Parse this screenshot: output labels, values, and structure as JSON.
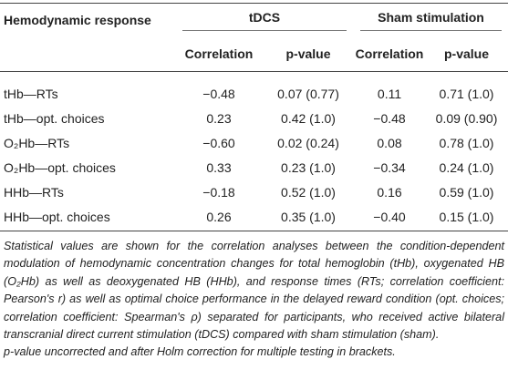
{
  "table": {
    "header": {
      "label": "Hemodynamic response",
      "groups": [
        "tDCS",
        "Sham stimulation"
      ],
      "columns": [
        "Correlation",
        "p-value",
        "Correlation",
        "p-value"
      ]
    },
    "rows": [
      [
        "tHb—RTs",
        "−0.48",
        "0.07 (0.77)",
        "0.11",
        "0.71 (1.0)"
      ],
      [
        "tHb—opt. choices",
        "0.23",
        "0.42 (1.0)",
        "−0.48",
        "0.09 (0.90)"
      ],
      [
        "O₂Hb—RTs",
        "−0.60",
        "0.02 (0.24)",
        "0.08",
        "0.78 (1.0)"
      ],
      [
        "O₂Hb—opt. choices",
        "0.33",
        "0.23 (1.0)",
        "−0.34",
        "0.24 (1.0)"
      ],
      [
        "HHb—RTs",
        "−0.18",
        "0.52 (1.0)",
        "0.16",
        "0.59 (1.0)"
      ],
      [
        "HHb—opt. choices",
        "0.26",
        "0.35 (1.0)",
        "−0.40",
        "0.15 (1.0)"
      ]
    ]
  },
  "note": [
    "Statistical values are shown for the correlation analyses between the condition-dependent modulation of hemodynamic concentration changes for total hemoglobin (tHb), oxygenated HB (O₂Hb) as well as deoxygenated HB (HHb), and response times (RTs; correlation coefficient: Pearson's r) as well as optimal choice performance in the delayed reward condition (opt. choices; correlation coefficient: Spearman's ρ) separated for participants, who received active bilateral transcranial direct current stimulation (tDCS) compared with sham stimulation (sham).",
    "p-value uncorrected and after Holm correction for multiple testing in brackets."
  ]
}
